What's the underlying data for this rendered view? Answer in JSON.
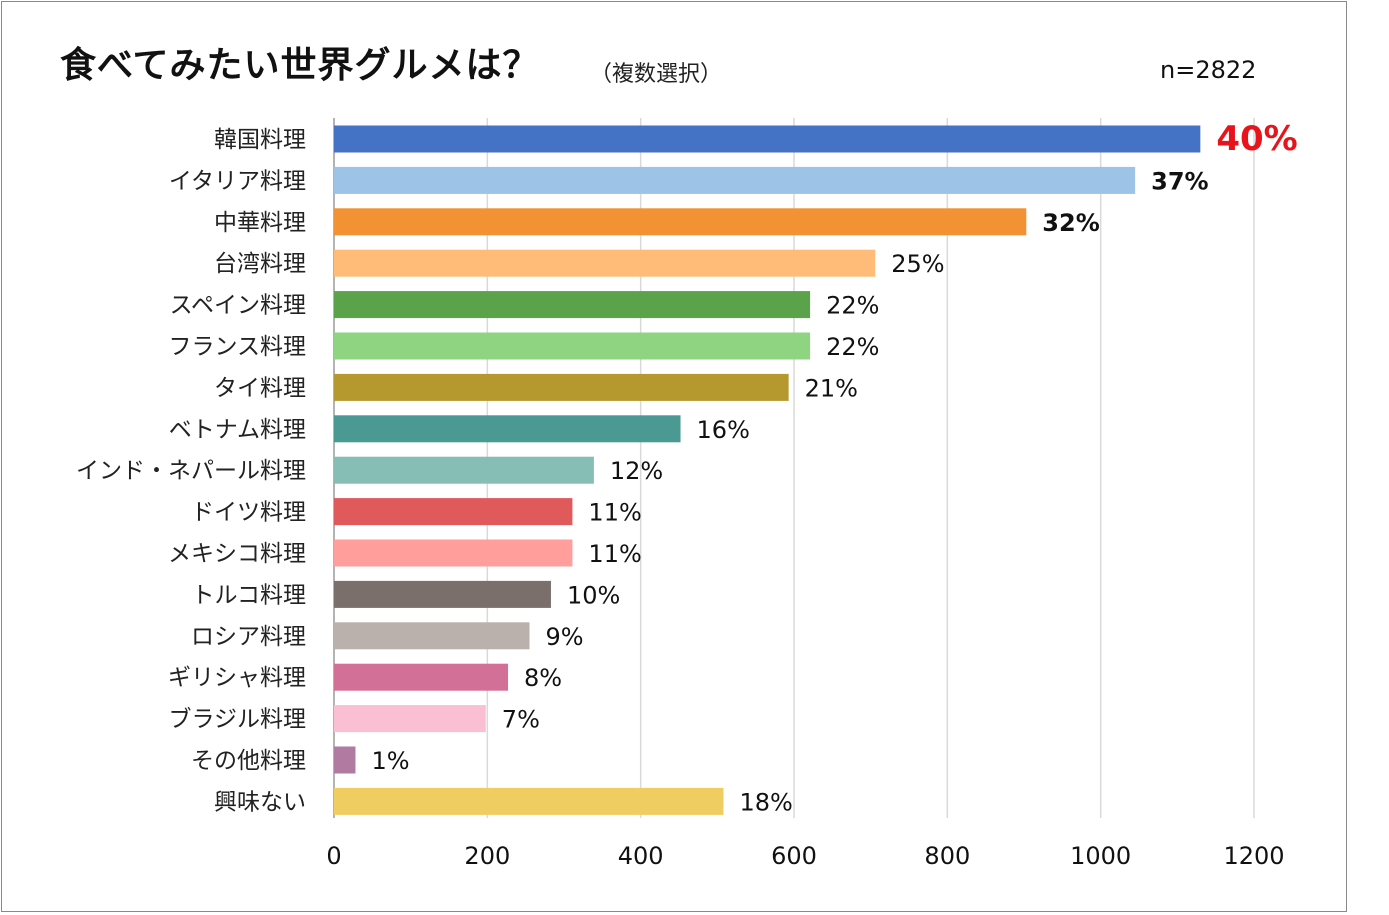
{
  "title": "食べてみたい世界グルメは？",
  "subtitle": "（複数選択）",
  "sample_size": "n=2822",
  "chart_data": {
    "type": "bar",
    "orientation": "horizontal",
    "categories": [
      "韓国料理",
      "イタリア料理",
      "中華料理",
      "台湾料理",
      "スペイン料理",
      "フランス料理",
      "タイ料理",
      "ベトナム料理",
      "インド・ネパール料理",
      "ドイツ料理",
      "メキシコ料理",
      "トルコ料理",
      "ロシア料理",
      "ギリシャ料理",
      "ブラジル料理",
      "その他料理",
      "興味ない"
    ],
    "values": [
      1130,
      1045,
      903,
      706,
      621,
      621,
      593,
      452,
      339,
      311,
      311,
      283,
      255,
      227,
      198,
      28,
      508
    ],
    "labels": [
      "40%",
      "37%",
      "32%",
      "25%",
      "22%",
      "22%",
      "21%",
      "16%",
      "12%",
      "11%",
      "11%",
      "10%",
      "9%",
      "8%",
      "7%",
      "1%",
      "18%"
    ],
    "colors": [
      "#4472c4",
      "#9dc3e6",
      "#f39233",
      "#ffbb77",
      "#5aa34b",
      "#8fd480",
      "#b5982e",
      "#4a9a93",
      "#86bdb4",
      "#e05a5c",
      "#ff9e9b",
      "#7a6f6b",
      "#bbb1ac",
      "#d27097",
      "#fbbfd3",
      "#b07aa1",
      "#f0cd61"
    ],
    "label_styles": [
      "highlight",
      "bold",
      "bold",
      "normal",
      "normal",
      "normal",
      "normal",
      "normal",
      "normal",
      "normal",
      "normal",
      "normal",
      "normal",
      "normal",
      "normal",
      "normal",
      "normal"
    ],
    "highlight_color": "#e8141b",
    "xlim": [
      0,
      1200
    ],
    "xticks": [
      0,
      200,
      400,
      600,
      800,
      1000,
      1200
    ],
    "grid": true
  }
}
